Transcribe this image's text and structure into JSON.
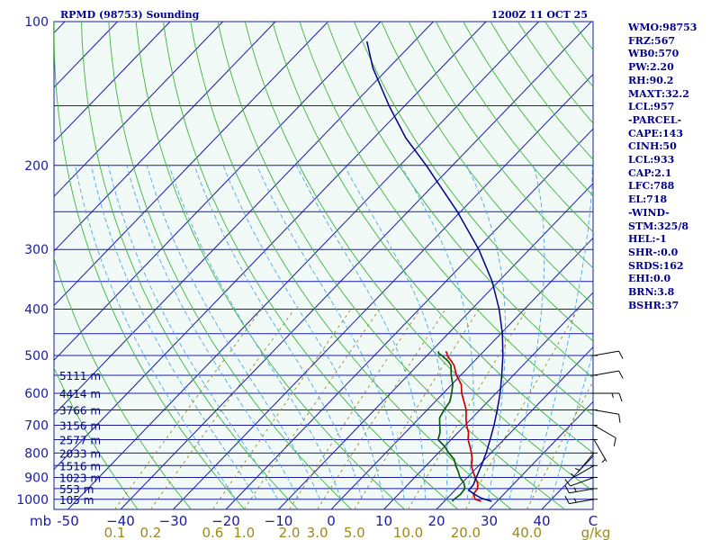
{
  "header": {
    "station": "RPMD (98753) Sounding",
    "time": "1200Z 11 OCT 25"
  },
  "sidebar": {
    "items": [
      "WMO:98753",
      "FRZ:567",
      "WB0:570",
      "PW:2.20",
      "RH:90.2",
      "MAXT:32.2",
      "LCL:957",
      "-PARCEL-",
      "CAPE:143",
      "CINH:50",
      "LCL:933",
      "CAP:2.1",
      "LFC:788",
      "EL:718",
      "-WIND-",
      "STM:325/8",
      "HEL:-1",
      "SHR-:0.0",
      "SRDS:162",
      "EHI:0.0",
      "BRN:3.8",
      "BSHR:37"
    ]
  },
  "axis": {
    "pressure_unit": "mb",
    "mixing_ratio_unit": "g/kg"
  },
  "colors": {
    "background": "#f2faf7",
    "isobar": "#1a1aa8",
    "isotherm": "#1a1aa8",
    "dry_adiabat": "#3cb43c",
    "moist_adiabat": "#4aa8e6",
    "mixing_ratio": "#9a8a1a",
    "temperature": "#cc0000",
    "dewpoint": "#0a5a0a",
    "parcel": "#00008b"
  },
  "chart_data": {
    "type": "line",
    "title": "RPMD (98753) Sounding",
    "subtitle": "1200Z 11 OCT 25",
    "pressure_range": [
      1050,
      100
    ],
    "pressure_ticks": [
      100,
      200,
      300,
      400,
      500,
      600,
      700,
      800,
      900,
      1000
    ],
    "isobars": [
      100,
      150,
      200,
      250,
      300,
      350,
      400,
      450,
      500,
      550,
      600,
      650,
      700,
      750,
      800,
      850,
      900,
      950,
      1000
    ],
    "temperature_ticks": [
      -50,
      -40,
      -30,
      -20,
      -10,
      0,
      10,
      20,
      30,
      40
    ],
    "temperature_tick_labels": [
      "-50",
      "−40",
      "−30",
      "−20",
      "−10",
      "0",
      "10",
      "20",
      "30",
      "40"
    ],
    "temperature_axis_end_label": "C",
    "mixing_ratio_ticks": [
      0.1,
      0.2,
      0.6,
      1.0,
      2.0,
      3.0,
      5.0,
      10.0,
      20.0,
      40.0
    ],
    "mixing_ratio_labels": [
      "0.1",
      "0.2",
      "0.6",
      "1.0",
      "2.0",
      "3.0",
      "5.0",
      "10.0",
      "20.0",
      "40.0"
    ],
    "height_labels": [
      {
        "p": 1000,
        "text": "105 m"
      },
      {
        "p": 950,
        "text": "553 m"
      },
      {
        "p": 900,
        "text": "1023 m"
      },
      {
        "p": 850,
        "text": "1516 m"
      },
      {
        "p": 800,
        "text": "2033 m"
      },
      {
        "p": 750,
        "text": "2577 m"
      },
      {
        "p": 700,
        "text": "3156 m"
      },
      {
        "p": 650,
        "text": "3766 m"
      },
      {
        "p": 600,
        "text": "4414 m"
      },
      {
        "p": 550,
        "text": "5111 m"
      }
    ],
    "series": [
      {
        "name": "temperature",
        "points": [
          [
            1010,
            27.0
          ],
          [
            1000,
            25.5
          ],
          [
            975,
            24.2
          ],
          [
            950,
            24.0
          ],
          [
            925,
            23.0
          ],
          [
            900,
            21.5
          ],
          [
            875,
            20.0
          ],
          [
            850,
            18.6
          ],
          [
            825,
            17.6
          ],
          [
            800,
            16.3
          ],
          [
            775,
            14.8
          ],
          [
            750,
            13.2
          ],
          [
            725,
            12.0
          ],
          [
            700,
            10.3
          ],
          [
            675,
            8.8
          ],
          [
            650,
            7.4
          ],
          [
            625,
            5.5
          ],
          [
            600,
            3.5
          ],
          [
            575,
            1.8
          ],
          [
            550,
            -0.8
          ],
          [
            525,
            -3.0
          ],
          [
            515,
            -4.2
          ],
          [
            500,
            -6.2
          ],
          [
            495,
            -6.6
          ],
          [
            490,
            -7.2
          ]
        ]
      },
      {
        "name": "dewpoint",
        "points": [
          [
            1010,
            21.5
          ],
          [
            1000,
            21.5
          ],
          [
            975,
            21.8
          ],
          [
            950,
            21.6
          ],
          [
            925,
            20.4
          ],
          [
            900,
            18.6
          ],
          [
            875,
            17.2
          ],
          [
            850,
            15.6
          ],
          [
            825,
            14.2
          ],
          [
            800,
            12.0
          ],
          [
            775,
            10.0
          ],
          [
            750,
            7.5
          ],
          [
            725,
            6.6
          ],
          [
            700,
            5.2
          ],
          [
            675,
            3.8
          ],
          [
            650,
            3.2
          ],
          [
            625,
            2.8
          ],
          [
            600,
            1.6
          ],
          [
            575,
            0.2
          ],
          [
            550,
            -1.8
          ],
          [
            525,
            -3.6
          ],
          [
            515,
            -4.8
          ],
          [
            500,
            -7.2
          ],
          [
            495,
            -8.2
          ],
          [
            490,
            -8.6
          ]
        ]
      },
      {
        "name": "parcel",
        "points": [
          [
            1010,
            29.0
          ],
          [
            995,
            26.5
          ],
          [
            975,
            24.3
          ],
          [
            957,
            22.6
          ],
          [
            933,
            22.5
          ],
          [
            900,
            21.7
          ],
          [
            850,
            20.5
          ],
          [
            800,
            19.1
          ],
          [
            750,
            17.4
          ],
          [
            700,
            15.5
          ],
          [
            650,
            13.3
          ],
          [
            600,
            10.8
          ],
          [
            550,
            7.8
          ],
          [
            500,
            4.4
          ],
          [
            450,
            0.3
          ],
          [
            400,
            -4.8
          ],
          [
            350,
            -11.2
          ],
          [
            300,
            -19.6
          ],
          [
            250,
            -30.6
          ],
          [
            200,
            -45.0
          ],
          [
            175,
            -54.0
          ],
          [
            150,
            -63.0
          ],
          [
            125,
            -73.0
          ],
          [
            110,
            -79.0
          ]
        ]
      }
    ],
    "wind_barbs": [
      {
        "p": 1000,
        "dir": 260,
        "kt": 15
      },
      {
        "p": 950,
        "dir": 260,
        "kt": 15
      },
      {
        "p": 900,
        "dir": 250,
        "kt": 10
      },
      {
        "p": 850,
        "dir": 240,
        "kt": 5
      },
      {
        "p": 800,
        "dir": 220,
        "kt": 5
      },
      {
        "p": 750,
        "dir": 150,
        "kt": 5
      },
      {
        "p": 700,
        "dir": 120,
        "kt": 10
      },
      {
        "p": 650,
        "dir": 100,
        "kt": 10
      },
      {
        "p": 600,
        "dir": 90,
        "kt": 15
      },
      {
        "p": 550,
        "dir": 80,
        "kt": 10
      },
      {
        "p": 500,
        "dir": 80,
        "kt": 10
      }
    ],
    "grid": true
  }
}
